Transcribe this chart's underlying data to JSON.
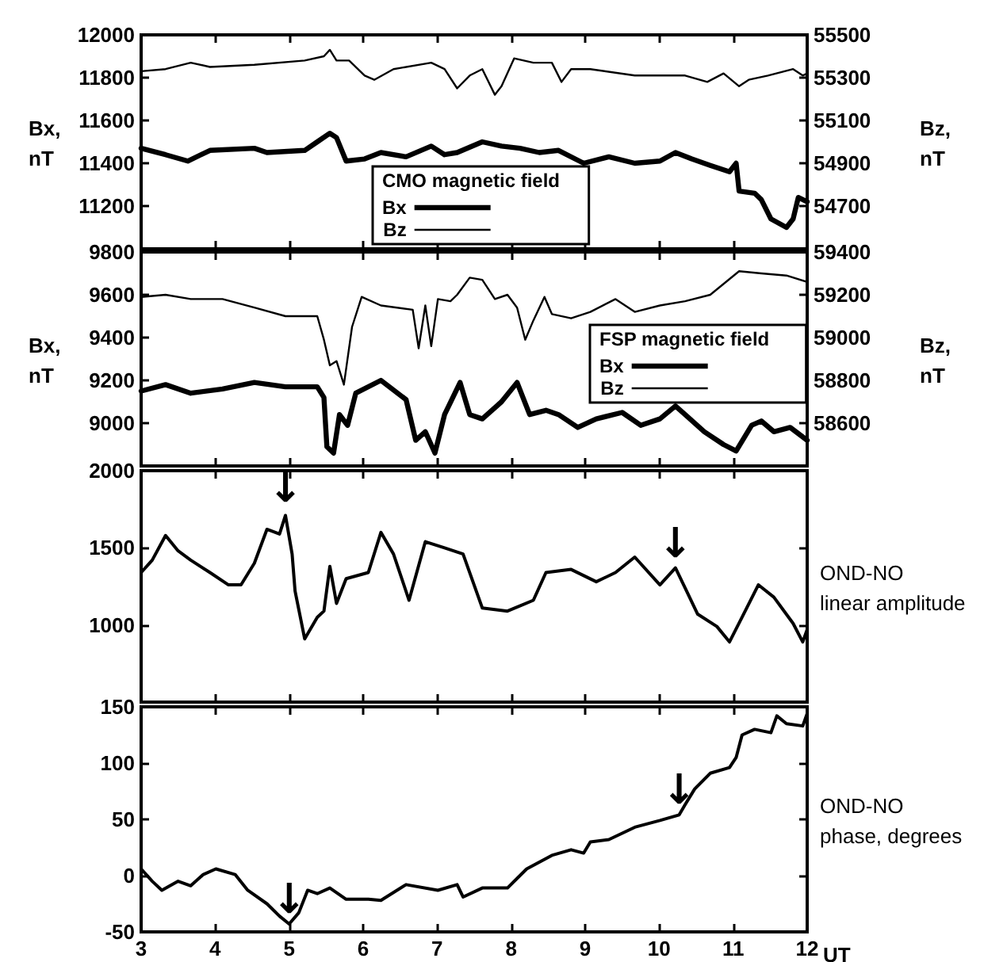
{
  "chart_data": [
    {
      "type": "line",
      "ylabel": "Bx,\nnT",
      "y2label": "Bz,\nnT",
      "legend_title": "CMO magnetic field",
      "legend": "bottom",
      "tick_labels": "y",
      "xlim": [
        3,
        12
      ],
      "xticks": [
        3,
        4,
        5,
        6,
        7,
        8,
        9,
        10,
        11,
        12
      ],
      "ylim": [
        11000,
        12000
      ],
      "yticks": [
        11200,
        11400,
        11600,
        11800,
        12000
      ],
      "y2lim": [
        54500,
        55500
      ],
      "y2ticks": [
        54700,
        54900,
        55100,
        55300,
        55500
      ],
      "series": [
        {
          "name": "Bx",
          "color": "#000000",
          "x": [
            3,
            3.33,
            3.63,
            3.93,
            4.53,
            4.7,
            5.21,
            5.38,
            5.55,
            5.64,
            5.77,
            6.02,
            6.24,
            6.58,
            6.92,
            7.1,
            7.27,
            7.61,
            7.87,
            8.12,
            8.38,
            8.64,
            8.98,
            9.32,
            9.67,
            10.01,
            10.22,
            10.44,
            10.69,
            10.95,
            11.04,
            11.08,
            11.29,
            11.38,
            11.51,
            11.72,
            11.81,
            11.88,
            12
          ],
          "values": [
            11470,
            11440,
            11410,
            11460,
            11470,
            11450,
            11460,
            11500,
            11540,
            11520,
            11410,
            11420,
            11450,
            11430,
            11480,
            11440,
            11450,
            11500,
            11480,
            11470,
            11450,
            11460,
            11400,
            11430,
            11400,
            11410,
            11450,
            11420,
            11390,
            11360,
            11400,
            11270,
            11260,
            11230,
            11140,
            11100,
            11140,
            11240,
            11220
          ]
        },
        {
          "name": "Bz",
          "color": "#000000",
          "axis": "y2",
          "x": [
            3,
            3.33,
            3.67,
            3.93,
            4.53,
            5.21,
            5.47,
            5.55,
            5.64,
            5.81,
            6.02,
            6.15,
            6.41,
            6.92,
            7.1,
            7.27,
            7.44,
            7.61,
            7.78,
            7.87,
            8.04,
            8.3,
            8.55,
            8.68,
            8.81,
            9.07,
            9.67,
            10.35,
            10.65,
            10.87,
            11.08,
            11.21,
            11.47,
            11.81,
            11.94,
            12
          ],
          "values": [
            55330,
            55340,
            55370,
            55350,
            55360,
            55380,
            55400,
            55430,
            55380,
            55380,
            55310,
            55290,
            55340,
            55370,
            55340,
            55250,
            55310,
            55340,
            55220,
            55260,
            55390,
            55370,
            55370,
            55280,
            55340,
            55340,
            55310,
            55310,
            55280,
            55320,
            55260,
            55290,
            55310,
            55340,
            55310,
            55320
          ]
        }
      ]
    },
    {
      "type": "line",
      "ylabel": "Bx,\nnT",
      "y2label": "Bz,\nnT",
      "legend_title": "FSP magnetic field",
      "legend": "right",
      "tick_labels": "y",
      "xlim": [
        3,
        12
      ],
      "xticks": [
        3,
        4,
        5,
        6,
        7,
        8,
        9,
        10,
        11,
        12
      ],
      "ylim": [
        8800,
        9800
      ],
      "yticks": [
        9000,
        9200,
        9400,
        9600,
        9800
      ],
      "y2lim": [
        58400,
        59400
      ],
      "y2ticks": [
        58600,
        58800,
        59000,
        59200,
        59400
      ],
      "series": [
        {
          "name": "Bx",
          "color": "#000000",
          "x": [
            3,
            3.33,
            3.67,
            4.1,
            4.53,
            4.95,
            5.38,
            5.47,
            5.51,
            5.6,
            5.68,
            5.79,
            5.9,
            6.24,
            6.58,
            6.71,
            6.84,
            6.97,
            7.1,
            7.31,
            7.44,
            7.61,
            7.87,
            8.08,
            8.25,
            8.47,
            8.64,
            8.9,
            9.15,
            9.5,
            9.75,
            10.01,
            10.22,
            10.35,
            10.61,
            10.87,
            11.04,
            11.25,
            11.38,
            11.55,
            11.77,
            12
          ],
          "values": [
            9150,
            9180,
            9140,
            9160,
            9190,
            9170,
            9170,
            9120,
            8890,
            8860,
            9040,
            8990,
            9140,
            9200,
            9110,
            8920,
            8960,
            8860,
            9040,
            9190,
            9040,
            9020,
            9100,
            9190,
            9040,
            9060,
            9040,
            8980,
            9020,
            9050,
            8990,
            9020,
            9080,
            9040,
            8960,
            8900,
            8870,
            8990,
            9010,
            8960,
            8980,
            8920
          ]
        },
        {
          "name": "Bz",
          "color": "#000000",
          "axis": "y2",
          "x": [
            3,
            3.33,
            3.67,
            4.1,
            4.53,
            4.95,
            5.38,
            5.47,
            5.55,
            5.64,
            5.74,
            5.85,
            5.98,
            6.24,
            6.67,
            6.75,
            6.84,
            6.92,
            7.01,
            7.18,
            7.27,
            7.44,
            7.61,
            7.78,
            7.95,
            8.08,
            8.19,
            8.3,
            8.45,
            8.55,
            8.81,
            9.07,
            9.41,
            9.67,
            10.01,
            10.35,
            10.69,
            11.08,
            11.38,
            11.72,
            12
          ],
          "values": [
            59190,
            59200,
            59180,
            59180,
            59140,
            59100,
            59100,
            58990,
            58870,
            58890,
            58780,
            59050,
            59190,
            59150,
            59130,
            58950,
            59150,
            58960,
            59180,
            59170,
            59200,
            59280,
            59270,
            59180,
            59200,
            59140,
            58990,
            59080,
            59190,
            59110,
            59090,
            59120,
            59180,
            59120,
            59150,
            59170,
            59200,
            59310,
            59300,
            59290,
            59260
          ]
        }
      ]
    },
    {
      "type": "line",
      "ylabel": "OND-NO\nlinear amplitude",
      "tick_labels": "y",
      "xlim": [
        3,
        12
      ],
      "xticks": [
        3,
        4,
        5,
        6,
        7,
        8,
        9,
        10,
        11,
        12
      ],
      "ylim": [
        500,
        2000
      ],
      "yticks": [
        1000,
        1500,
        2000
      ],
      "annotations": [
        {
          "text": "↓",
          "x": 4.95,
          "y": 1730
        },
        {
          "text": "↓",
          "x": 10.22,
          "y": 1370
        }
      ],
      "series": [
        {
          "color": "#000000",
          "x": [
            3,
            3.15,
            3.33,
            3.5,
            3.67,
            3.93,
            4.18,
            4.35,
            4.53,
            4.7,
            4.87,
            4.95,
            5.04,
            5.08,
            5.21,
            5.38,
            5.47,
            5.55,
            5.64,
            5.77,
            6.07,
            6.24,
            6.41,
            6.62,
            6.84,
            7.1,
            7.35,
            7.61,
            7.95,
            8.3,
            8.47,
            8.81,
            9.15,
            9.41,
            9.67,
            10.01,
            10.22,
            10.35,
            10.52,
            10.78,
            10.95,
            11.12,
            11.34,
            11.55,
            11.81,
            11.94,
            12
          ],
          "values": [
            1340,
            1420,
            1580,
            1480,
            1420,
            1340,
            1260,
            1260,
            1400,
            1620,
            1590,
            1710,
            1460,
            1220,
            910,
            1050,
            1090,
            1380,
            1140,
            1300,
            1340,
            1600,
            1460,
            1160,
            1540,
            1500,
            1460,
            1110,
            1090,
            1160,
            1340,
            1360,
            1280,
            1340,
            1440,
            1260,
            1370,
            1240,
            1070,
            990,
            890,
            1050,
            1260,
            1180,
            1010,
            890,
            970
          ]
        }
      ]
    },
    {
      "type": "line",
      "ylabel": "OND-NO\nphase, degrees",
      "xlabel": "UT",
      "xlim": [
        3,
        12
      ],
      "xticks": [
        3,
        4,
        5,
        6,
        7,
        8,
        9,
        10,
        11,
        12
      ],
      "ylim": [
        -50,
        150
      ],
      "yticks": [
        -50,
        0,
        50,
        100,
        150
      ],
      "annotations": [
        {
          "text": "↓",
          "x": 5,
          "y": -43
        },
        {
          "text": "↓",
          "x": 10.27,
          "y": 54
        }
      ],
      "series": [
        {
          "color": "#000000",
          "x": [
            3,
            3.15,
            3.28,
            3.5,
            3.67,
            3.84,
            4.01,
            4.27,
            4.44,
            4.7,
            4.87,
            5,
            5.13,
            5.25,
            5.38,
            5.55,
            5.77,
            6.07,
            6.24,
            6.58,
            7.01,
            7.27,
            7.35,
            7.61,
            7.95,
            8.21,
            8.55,
            8.81,
            8.98,
            9.07,
            9.32,
            9.67,
            10.01,
            10.27,
            10.35,
            10.48,
            10.69,
            10.95,
            11.04,
            11.12,
            11.29,
            11.51,
            11.59,
            11.72,
            11.94,
            12
          ],
          "values": [
            6,
            -5,
            -13,
            -5,
            -9,
            1,
            6,
            1,
            -13,
            -25,
            -36,
            -43,
            -33,
            -13,
            -16,
            -11,
            -21,
            -21,
            -22,
            -8,
            -13,
            -8,
            -19,
            -11,
            -11,
            6,
            18,
            23,
            20,
            30,
            32,
            43,
            49,
            54,
            63,
            77,
            91,
            96,
            105,
            125,
            130,
            127,
            142,
            135,
            133,
            144
          ]
        }
      ]
    }
  ]
}
